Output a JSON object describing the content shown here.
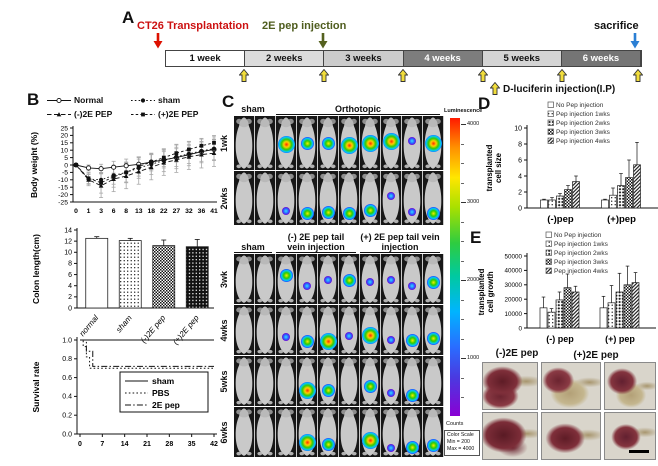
{
  "panels": {
    "a": "A",
    "b": "B",
    "c": "C",
    "d": "D",
    "e": "E"
  },
  "timeline": {
    "events": [
      {
        "label": "CT26 Transplantation",
        "text_color": "#cc1111",
        "arrow_color": "#dd1100"
      },
      {
        "label": "2E pep injection",
        "text_color": "#4f5d1e",
        "arrow_color": "#55611f"
      },
      {
        "label": "sacrifice",
        "text_color": "#111111",
        "arrow_color": "#2b7fd4"
      }
    ],
    "weeks": [
      {
        "label": "1 week",
        "bg": "#ffffff",
        "fg": "#111111"
      },
      {
        "label": "2 weeks",
        "bg": "#dcdcdc",
        "fg": "#111111"
      },
      {
        "label": "3 weeks",
        "bg": "#cccccc",
        "fg": "#111111"
      },
      {
        "label": "4 weeks",
        "bg": "#7d7d7d",
        "fg": "#ffffff"
      },
      {
        "label": "5 weeks",
        "bg": "#d4d4d4",
        "fg": "#111111"
      },
      {
        "label": "6 weeks",
        "bg": "#757575",
        "fg": "#ffffff"
      }
    ],
    "injection_arrow_color": "#f1dd3c",
    "luciferin_legend": "D-luciferin injection(I.P)"
  },
  "chart_data": [
    {
      "id": "body_weight",
      "type": "line",
      "ylabel": "Body weight (%)",
      "ylim": [
        -25,
        25
      ],
      "yticks": [
        25,
        20,
        15,
        10,
        5,
        0,
        -5,
        -10,
        -15,
        -20,
        -25
      ],
      "xticks": [
        "0",
        "1",
        "3",
        "6",
        "8",
        "13",
        "18",
        "22",
        "27",
        "32",
        "36",
        "41"
      ],
      "series": [
        {
          "name": "Normal",
          "marker": "open-circle",
          "line": "solid",
          "values": [
            0,
            -2,
            -2.5,
            -1.5,
            -0.5,
            0.5,
            2,
            3.5,
            5,
            7,
            9,
            10.5
          ],
          "errors": [
            1,
            2,
            3,
            4,
            4.5,
            5,
            5,
            5.5,
            6,
            6,
            6.5,
            7
          ]
        },
        {
          "name": "sham",
          "marker": "filled-circle",
          "line": "dotted",
          "values": [
            0,
            -9.5,
            -10,
            -7,
            -5,
            -2,
            0.5,
            3,
            5.5,
            7.5,
            9.5,
            11
          ],
          "errors": [
            1,
            3,
            5,
            6,
            6.5,
            7,
            7,
            7.5,
            8,
            8,
            8,
            8
          ]
        },
        {
          "name": "(-)2E PEP",
          "marker": "filled-triangle",
          "line": "dashed",
          "values": [
            0,
            -10,
            -14,
            -9.5,
            -7.5,
            -4.5,
            -1.5,
            1.5,
            3.5,
            5.5,
            7,
            8
          ],
          "errors": [
            1,
            4,
            8,
            8.5,
            8.5,
            8.5,
            8.5,
            8.5,
            8.5,
            8.5,
            9,
            9
          ]
        },
        {
          "name": "(+)2E PEP",
          "marker": "filled-square",
          "line": "dashed2",
          "values": [
            0,
            -9,
            -12,
            -8,
            -5,
            -1,
            2,
            5,
            8,
            10.5,
            13,
            15
          ],
          "errors": [
            1,
            4,
            7,
            7,
            7,
            6.5,
            6,
            6,
            6,
            5.5,
            5,
            5
          ]
        }
      ]
    },
    {
      "id": "colon_length",
      "type": "bar",
      "ylabel": "Colon length(cm)",
      "ylim": [
        0,
        14
      ],
      "yticks": [
        0,
        2,
        4,
        6,
        8,
        10,
        12,
        14
      ],
      "categories": [
        "normal",
        "sham",
        "(-)2E pep",
        "(+)2E pep"
      ],
      "values": [
        12.5,
        12.1,
        11.2,
        11.0
      ],
      "errors": [
        0.3,
        0.4,
        1.0,
        1.3
      ]
    },
    {
      "id": "survival",
      "type": "step",
      "ylabel": "Survival rate",
      "yticks": [
        "1.0",
        "0.8",
        "0.6",
        "0.4",
        "0.2",
        "0.0"
      ],
      "xticks": [
        0,
        7,
        14,
        21,
        28,
        35,
        42
      ],
      "xlim": [
        0,
        42
      ],
      "series": [
        {
          "name": "sham",
          "line": "solid",
          "points": [
            [
              0,
              1
            ],
            [
              42,
              1
            ]
          ]
        },
        {
          "name": "PBS",
          "line": "dotted",
          "points": [
            [
              0,
              1
            ],
            [
              1,
              1
            ],
            [
              1,
              0.93
            ],
            [
              2,
              0.93
            ],
            [
              2,
              0.82
            ],
            [
              3,
              0.82
            ],
            [
              3,
              0.7
            ],
            [
              42,
              0.7
            ]
          ]
        },
        {
          "name": "2E pep",
          "line": "dashdot",
          "points": [
            [
              0,
              1
            ],
            [
              2,
              1
            ],
            [
              2,
              0.88
            ],
            [
              4,
              0.88
            ],
            [
              4,
              0.72
            ],
            [
              42,
              0.72
            ]
          ]
        }
      ]
    },
    {
      "id": "transplanted_cell_size",
      "type": "bar",
      "ylabel_lines": [
        "transplanted",
        "cell size"
      ],
      "ylim": [
        0,
        10
      ],
      "yticks": [
        0,
        2,
        4,
        6,
        8,
        10
      ],
      "groups": [
        "(-)pep",
        "(+)pep"
      ],
      "legend": [
        "No Pep injection",
        "Pep injection 1wks",
        "Pep injection 2wks",
        "Pep injection 3wks",
        "Pep injection 4wks"
      ],
      "series": [
        [
          1.0,
          1.0,
          1.5,
          2.3,
          3.3
        ],
        [
          1.0,
          1.6,
          2.8,
          3.8,
          5.4
        ]
      ],
      "errors": [
        [
          0.1,
          0.3,
          0.3,
          0.5,
          0.7
        ],
        [
          0.1,
          0.9,
          1.5,
          2.2,
          2.8
        ]
      ]
    },
    {
      "id": "transplanted_cell_growth",
      "type": "bar",
      "ylabel_lines": [
        "transplanted",
        "cell growth"
      ],
      "ylim": [
        0,
        50000
      ],
      "yticks": [
        0,
        10000,
        20000,
        30000,
        40000,
        50000
      ],
      "groups": [
        "(-) pep",
        "(+) pep"
      ],
      "legend": [
        "No Pep injection",
        "Pep injection 1wks",
        "Pep injection 2wks",
        "Pep injection 3wks",
        "Pep injection 4wks"
      ],
      "series": [
        [
          14000,
          11000,
          19500,
          28000,
          25000
        ],
        [
          14000,
          17500,
          25000,
          30000,
          31500
        ]
      ],
      "errors": [
        [
          7500,
          2500,
          5500,
          9500,
          4000
        ],
        [
          8000,
          12000,
          13000,
          13000,
          7000
        ]
      ]
    }
  ],
  "bioluminescence": {
    "top_grid": {
      "row_labels": [
        "1wk",
        "2wks"
      ],
      "groups": [
        {
          "label": "sham",
          "cols": 2,
          "underline": false
        },
        {
          "label": "Orthotopic",
          "cols": 8,
          "underline": true
        }
      ],
      "rows": [
        [
          0,
          0,
          [
            3,
            0.52
          ],
          [
            2,
            0.5
          ],
          [
            2,
            0.5
          ],
          [
            3,
            0.53
          ],
          [
            3,
            0.5
          ],
          [
            3,
            0.46
          ],
          [
            1,
            0.46
          ],
          [
            3,
            0.5
          ]
        ],
        [
          0,
          0,
          [
            1,
            0.72
          ],
          [
            2,
            0.78
          ],
          [
            2,
            0.75
          ],
          [
            2,
            0.78
          ],
          [
            2,
            0.72
          ],
          [
            1,
            0.45
          ],
          [
            1,
            0.75
          ],
          [
            2,
            0.78
          ]
        ]
      ]
    },
    "bottom_grid": {
      "row_labels": [
        "3wk",
        "4wks",
        "5wks",
        "6wks"
      ],
      "groups": [
        {
          "label": "sham",
          "cols": 2,
          "underline": true
        },
        {
          "label": "(-) 2E pep tail\nvein injection",
          "cols": 4,
          "underline": true
        },
        {
          "label": "(+) 2E pep tail vein\ninjection",
          "cols": 4,
          "underline": true
        }
      ],
      "rows": [
        [
          0,
          0,
          [
            2,
            0.42
          ],
          [
            1,
            0.62
          ],
          [
            1,
            0.5
          ],
          [
            2,
            0.52
          ],
          [
            1,
            0.55
          ],
          [
            1,
            0.5
          ],
          [
            1,
            0.62
          ],
          [
            2,
            0.55
          ]
        ],
        [
          0,
          0,
          [
            1,
            0.62
          ],
          [
            2,
            0.72
          ],
          [
            3,
            0.72
          ],
          [
            1,
            0.6
          ],
          [
            3,
            0.6
          ],
          [
            1,
            0.68
          ],
          [
            2,
            0.7
          ],
          [
            2,
            0.65
          ]
        ],
        [
          0,
          0,
          0,
          [
            3,
            0.68
          ],
          [
            2,
            0.68
          ],
          0,
          [
            2,
            0.6
          ],
          [
            1,
            0.72
          ],
          [
            2,
            0.78
          ],
          0
        ],
        [
          0,
          0,
          0,
          [
            3,
            0.7
          ],
          [
            2,
            0.73
          ],
          0,
          [
            3,
            0.65
          ],
          [
            1,
            0.8
          ],
          [
            2,
            0.8
          ],
          [
            2,
            0.75
          ]
        ]
      ]
    },
    "colorbar": {
      "title": "Luminescence",
      "ticks": [
        4000,
        3000,
        2000,
        1000
      ],
      "counts_label": "Counts",
      "scale_lines": [
        "Color Scale",
        "Min = 200",
        "Max = 4000"
      ]
    }
  },
  "photos": {
    "left_label": "(-)2E pep",
    "right_label": "(+)2E pep"
  }
}
